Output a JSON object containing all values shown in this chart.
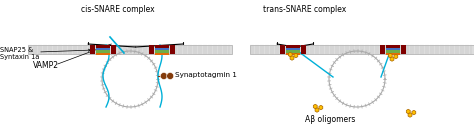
{
  "fig_width": 4.74,
  "fig_height": 1.27,
  "dpi": 100,
  "bg_color": "#ffffff",
  "labels": {
    "vamp2": "VAMP2",
    "snap25": "SNAP25 &\nSyntaxin 1a",
    "syn1": "Synaptotagmin 1",
    "cis": "cis-SNARE complex",
    "trans": "trans-SNARE complex",
    "abeta": "Aβ oligomers"
  },
  "colors": {
    "membrane_line": "#aaaaaa",
    "membrane_fill": "#dddddd",
    "blue": "#4472c4",
    "teal": "#00b0d8",
    "green": "#70ad47",
    "red": "#c00000",
    "orange": "#e36c09",
    "dark_red": "#7f0000",
    "brown": "#843c0c",
    "yellow": "#ffc000",
    "text_color": "#000000"
  }
}
